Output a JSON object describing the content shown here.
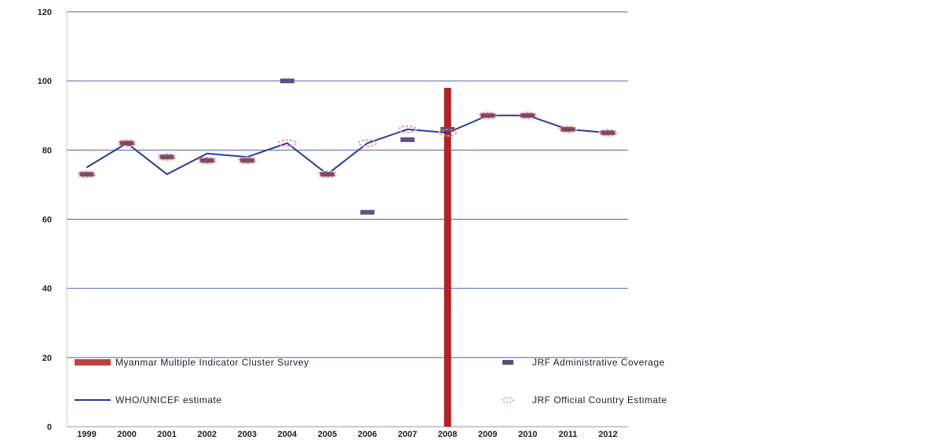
{
  "chart_data": {
    "type": "line",
    "title": "",
    "xlabel": "",
    "ylabel": "",
    "categories": [
      "1999",
      "2000",
      "2001",
      "2002",
      "2003",
      "2004",
      "2005",
      "2006",
      "2007",
      "2008",
      "2009",
      "2010",
      "2011",
      "2012"
    ],
    "ylim": [
      0,
      120
    ],
    "yticks": [
      0,
      20,
      40,
      60,
      80,
      100,
      120
    ],
    "grid": true,
    "series": [
      {
        "name": "Myanmar Multiple Indicator Cluster Survey",
        "kind": "bar",
        "color": "#b22222",
        "values": [
          null,
          null,
          null,
          null,
          null,
          null,
          null,
          null,
          null,
          98,
          null,
          null,
          null,
          null
        ]
      },
      {
        "name": "JRF Administrative Coverage",
        "kind": "marker",
        "color": "#5a4a78",
        "values": [
          73,
          82,
          78,
          77,
          77,
          100,
          73,
          62,
          83,
          86,
          90,
          90,
          86,
          85
        ]
      },
      {
        "name": "WHO/UNICEF estimate",
        "kind": "line",
        "color": "#2b3a9a",
        "values": [
          75,
          82,
          73,
          79,
          78,
          82,
          73,
          82,
          86,
          85,
          90,
          90,
          86,
          85
        ]
      },
      {
        "name": "JRF Official Country Estimate",
        "kind": "marker",
        "color": "#e8a0a8",
        "values": [
          73,
          82,
          78,
          77,
          77,
          82,
          73,
          82,
          86,
          85,
          90,
          90,
          86,
          85
        ]
      }
    ],
    "legend_position": "inside-bottom"
  }
}
